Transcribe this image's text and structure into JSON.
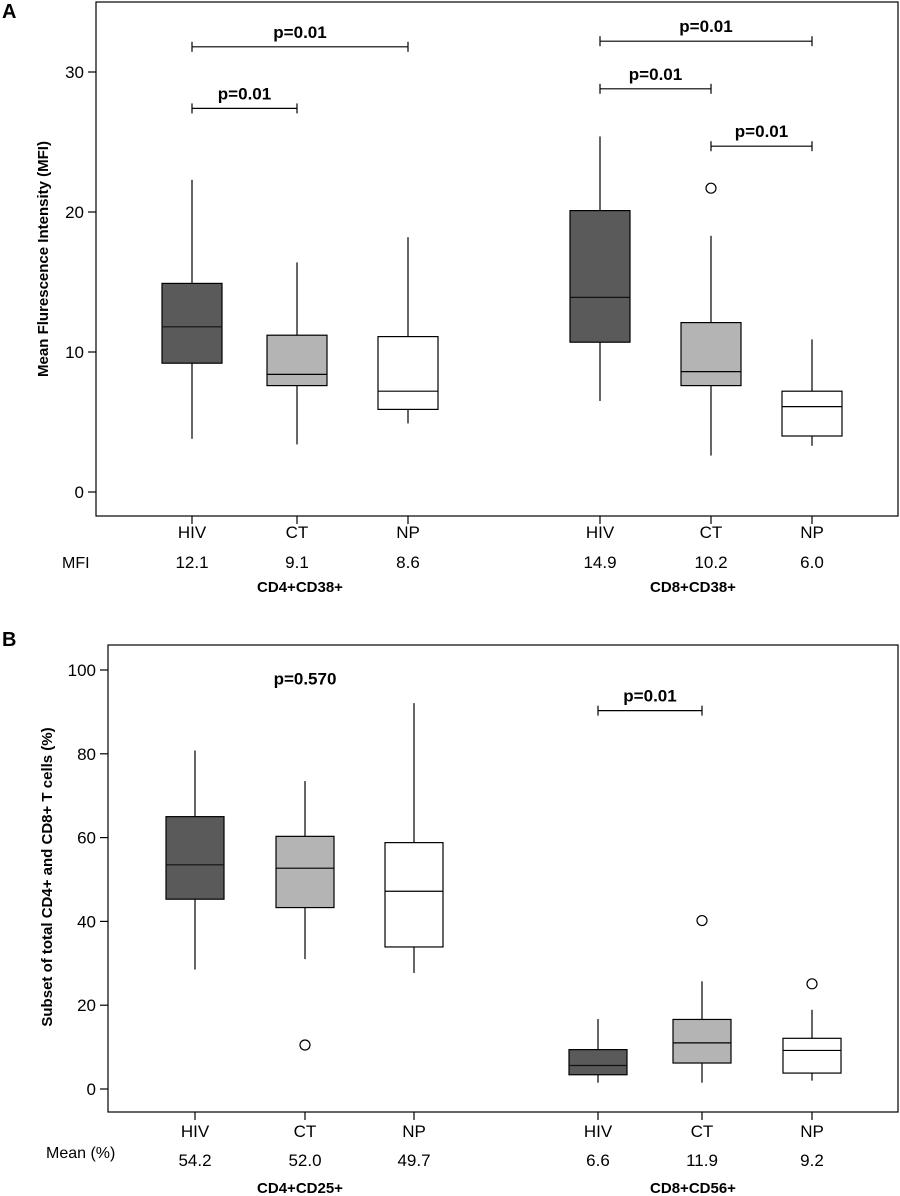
{
  "chart_data": [
    {
      "panel": "A",
      "type": "box",
      "title": "",
      "ylabel": "Mean Flurescence Intensity (MFI)",
      "ylim": [
        -3,
        35
      ],
      "yticks": [
        0,
        10,
        20,
        30
      ],
      "row_label": "MFI",
      "categories": [
        "HIV",
        "CT",
        "NP",
        "HIV",
        "CT",
        "NP"
      ],
      "groups": [
        {
          "label": "CD4+CD38+",
          "indices": [
            0,
            1,
            2
          ]
        },
        {
          "label": "CD8+CD38+",
          "indices": [
            3,
            4,
            5
          ]
        }
      ],
      "colors": [
        "#5a5a5a",
        "#b4b4b4",
        "#ffffff",
        "#5a5a5a",
        "#b4b4b4",
        "#ffffff"
      ],
      "boxes": [
        {
          "category": "HIV",
          "min": 3.8,
          "q1": 9.2,
          "median": 11.8,
          "q3": 14.9,
          "max": 22.3,
          "outliers": [],
          "mean_label": "12.1"
        },
        {
          "category": "CT",
          "min": 3.4,
          "q1": 7.6,
          "median": 8.4,
          "q3": 11.2,
          "max": 16.4,
          "outliers": [],
          "mean_label": "9.1"
        },
        {
          "category": "NP",
          "min": 4.9,
          "q1": 5.9,
          "median": 7.2,
          "q3": 11.1,
          "max": 18.2,
          "outliers": [],
          "mean_label": "8.6"
        },
        {
          "category": "HIV",
          "min": 6.5,
          "q1": 10.7,
          "median": 13.9,
          "q3": 20.1,
          "max": 25.4,
          "outliers": [],
          "mean_label": "14.9"
        },
        {
          "category": "CT",
          "min": 2.6,
          "q1": 7.6,
          "median": 8.6,
          "q3": 12.1,
          "max": 18.3,
          "outliers": [
            21.7
          ],
          "mean_label": "10.2"
        },
        {
          "category": "NP",
          "min": 3.3,
          "q1": 4.0,
          "median": 6.1,
          "q3": 7.2,
          "max": 10.9,
          "outliers": [],
          "mean_label": "6.0"
        }
      ],
      "comparisons": [
        {
          "from": 0,
          "to": 2,
          "y": 31.8,
          "label": "p=0.01"
        },
        {
          "from": 0,
          "to": 1,
          "y": 27.4,
          "label": "p=0.01"
        },
        {
          "from": 3,
          "to": 5,
          "y": 32.2,
          "label": "p=0.01"
        },
        {
          "from": 3,
          "to": 4,
          "y": 28.8,
          "label": "p=0.01"
        },
        {
          "from": 4,
          "to": 5,
          "y": 24.7,
          "label": "p=0.01"
        }
      ],
      "annotations": []
    },
    {
      "panel": "B",
      "type": "box",
      "title": "",
      "ylabel": "Subset of total CD4+ and CD8+ T cells (%)",
      "ylim": [
        -6,
        105
      ],
      "yticks": [
        0,
        20,
        40,
        60,
        80,
        100
      ],
      "row_label": "Mean (%)",
      "categories": [
        "HIV",
        "CT",
        "NP",
        "HIV",
        "CT",
        "NP"
      ],
      "groups": [
        {
          "label": "CD4+CD25+",
          "indices": [
            0,
            1,
            2
          ]
        },
        {
          "label": "CD8+CD56+",
          "indices": [
            3,
            4,
            5
          ]
        }
      ],
      "colors": [
        "#5a5a5a",
        "#b4b4b4",
        "#ffffff",
        "#5a5a5a",
        "#b4b4b4",
        "#ffffff"
      ],
      "boxes": [
        {
          "category": "HIV",
          "min": 28.5,
          "q1": 45.3,
          "median": 53.5,
          "q3": 65.0,
          "max": 80.8,
          "outliers": [],
          "mean_label": "54.2"
        },
        {
          "category": "CT",
          "min": 31.0,
          "q1": 43.3,
          "median": 52.7,
          "q3": 60.3,
          "max": 73.5,
          "outliers": [
            10.5
          ],
          "mean_label": "52.0"
        },
        {
          "category": "NP",
          "min": 27.7,
          "q1": 33.9,
          "median": 47.2,
          "q3": 58.8,
          "max": 92.1,
          "outliers": [],
          "mean_label": "49.7"
        },
        {
          "category": "HIV",
          "min": 1.5,
          "q1": 3.4,
          "median": 5.6,
          "q3": 9.4,
          "max": 16.7,
          "outliers": [],
          "mean_label": "6.6"
        },
        {
          "category": "CT",
          "min": 1.5,
          "q1": 6.2,
          "median": 11.0,
          "q3": 16.6,
          "max": 25.7,
          "outliers": [
            40.2
          ],
          "mean_label": "11.9"
        },
        {
          "category": "NP",
          "min": 2.0,
          "q1": 3.8,
          "median": 9.2,
          "q3": 12.1,
          "max": 18.9,
          "outliers": [
            25.1
          ],
          "mean_label": "9.2"
        }
      ],
      "comparisons": [
        {
          "from": 3,
          "to": 4,
          "y": 90.3,
          "label": "p=0.01"
        }
      ],
      "annotations": [
        {
          "text": "p=0.570",
          "anchor_category": 1,
          "y": 96.5
        }
      ]
    }
  ]
}
